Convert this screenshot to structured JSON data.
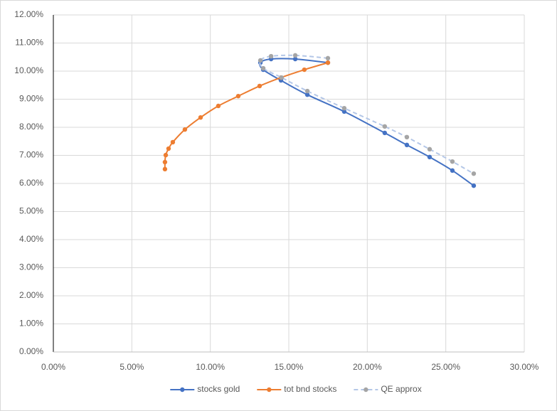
{
  "chart_data": {
    "type": "scatter",
    "xlim": [
      0,
      30
    ],
    "xticks": [
      {
        "value": 0,
        "label": "0.00%"
      },
      {
        "value": 5,
        "label": "5.00%"
      },
      {
        "value": 10,
        "label": "10.00%"
      },
      {
        "value": 15,
        "label": "15.00%"
      },
      {
        "value": 20,
        "label": "20.00%"
      },
      {
        "value": 25,
        "label": "25.00%"
      },
      {
        "value": 30,
        "label": "30.00%"
      }
    ],
    "ylim": [
      0,
      12
    ],
    "yticks": [
      {
        "value": 0,
        "label": "0.00%"
      },
      {
        "value": 1,
        "label": "1.00%"
      },
      {
        "value": 2,
        "label": "2.00%"
      },
      {
        "value": 3,
        "label": "3.00%"
      },
      {
        "value": 4,
        "label": "4.00%"
      },
      {
        "value": 5,
        "label": "5.00%"
      },
      {
        "value": 6,
        "label": "6.00%"
      },
      {
        "value": 7,
        "label": "7.00%"
      },
      {
        "value": 8,
        "label": "8.00%"
      },
      {
        "value": 9,
        "label": "9.00%"
      },
      {
        "value": 10,
        "label": "10.00%"
      },
      {
        "value": 11,
        "label": "11.00%"
      },
      {
        "value": 12,
        "label": "12.00%"
      }
    ],
    "grid": true,
    "legend": "bottom",
    "series": [
      {
        "name": "stocks gold",
        "color": "#4472c4",
        "dash": false,
        "x": [
          17.49,
          15.41,
          13.87,
          13.19,
          13.37,
          14.5,
          16.18,
          18.53,
          21.11,
          22.52,
          23.97,
          25.42,
          26.78
        ],
        "values": [
          10.3,
          10.43,
          10.43,
          10.3,
          10.05,
          9.67,
          9.16,
          8.56,
          7.8,
          7.37,
          6.94,
          6.46,
          5.92
        ]
      },
      {
        "name": "tot bnd stocks",
        "color": "#ed7d31",
        "dash": false,
        "x": [
          7.11,
          7.11,
          7.16,
          7.34,
          7.61,
          8.38,
          9.38,
          10.51,
          11.78,
          13.14,
          14.5,
          15.99,
          17.49
        ],
        "values": [
          6.51,
          6.76,
          7.01,
          7.24,
          7.47,
          7.92,
          8.35,
          8.76,
          9.11,
          9.47,
          9.77,
          10.05,
          10.3
        ]
      },
      {
        "name": "QE approx",
        "color": "#a5a5a5",
        "line_color": "#b4c7e7",
        "dash": true,
        "x": [
          17.49,
          15.41,
          13.87,
          13.19,
          13.37,
          14.54,
          16.18,
          18.53,
          21.11,
          22.52,
          23.97,
          25.42,
          26.78
        ],
        "values": [
          10.46,
          10.56,
          10.53,
          10.38,
          10.1,
          9.77,
          9.29,
          8.68,
          8.03,
          7.65,
          7.22,
          6.78,
          6.35
        ]
      }
    ]
  }
}
